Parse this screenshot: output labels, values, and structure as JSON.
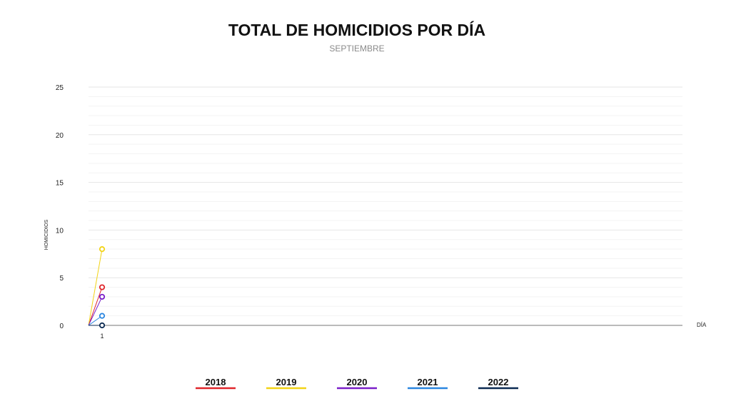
{
  "chart_data": {
    "type": "line",
    "title": "TOTAL DE HOMICIDIOS POR DÍA",
    "subtitle": "SEPTIEMBRE",
    "xlabel": "DÍA",
    "ylabel": "HOMICIDIOS",
    "categories": [
      "1"
    ],
    "ylim": [
      0,
      25
    ],
    "yticks": [
      0,
      5,
      10,
      15,
      20,
      25
    ],
    "grid": true,
    "legend_position": "bottom",
    "series": [
      {
        "name": "2018",
        "color": "#e0262b",
        "values": [
          4
        ]
      },
      {
        "name": "2019",
        "color": "#f2d316",
        "values": [
          8
        ]
      },
      {
        "name": "2020",
        "color": "#7a1fc9",
        "values": [
          3
        ]
      },
      {
        "name": "2021",
        "color": "#2a86e0",
        "values": [
          1
        ]
      },
      {
        "name": "2022",
        "color": "#0c2a52",
        "values": [
          0
        ]
      }
    ]
  }
}
